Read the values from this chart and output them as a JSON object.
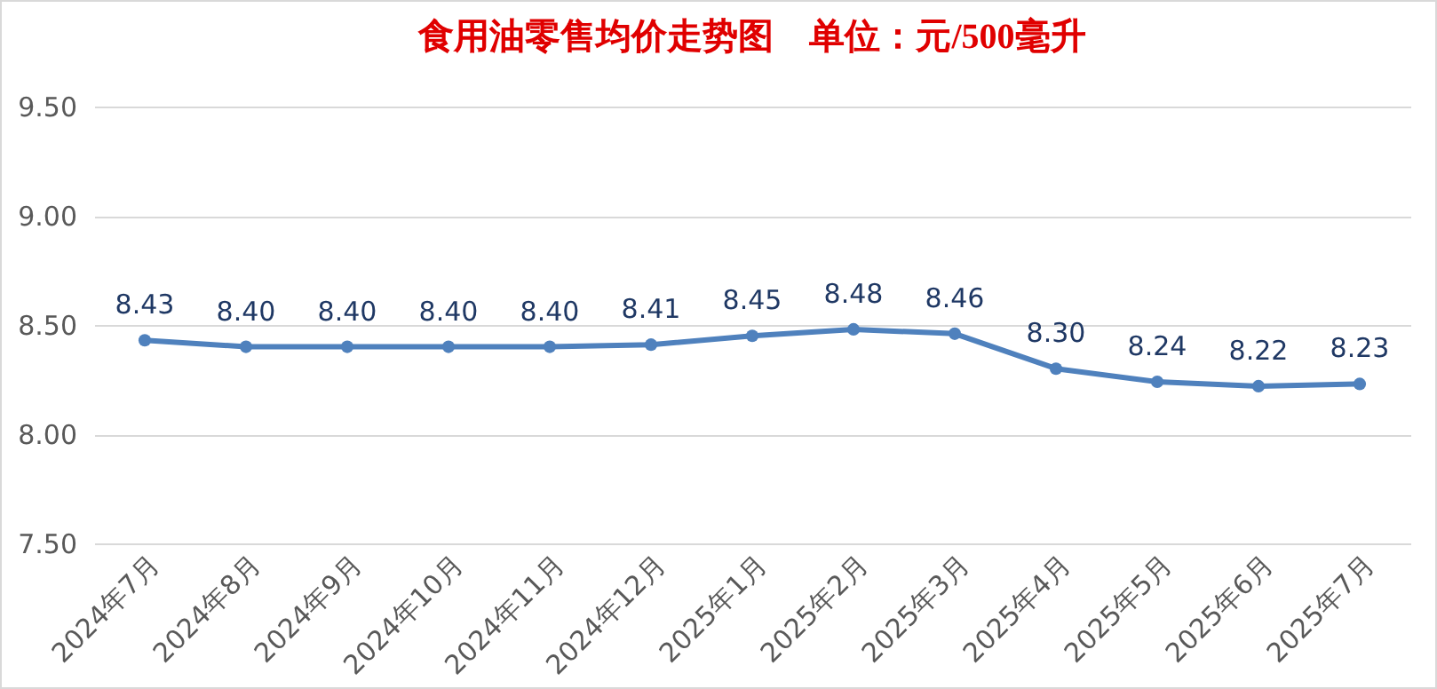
{
  "chart_data": {
    "type": "line",
    "title": "食用油零售均价走势图　单位：元/500毫升",
    "categories": [
      "2024年7月",
      "2024年8月",
      "2024年9月",
      "2024年10月",
      "2024年11月",
      "2024年12月",
      "2025年1月",
      "2025年2月",
      "2025年3月",
      "2025年4月",
      "2025年5月",
      "2025年6月",
      "2025年7月"
    ],
    "series": [
      {
        "color": "#4f81bd",
        "values": [
          8.43,
          8.4,
          8.4,
          8.4,
          8.4,
          8.41,
          8.45,
          8.48,
          8.46,
          8.3,
          8.24,
          8.22,
          8.23
        ],
        "value_labels": [
          "8.43",
          "8.40",
          "8.40",
          "8.40",
          "8.40",
          "8.41",
          "8.45",
          "8.48",
          "8.46",
          "8.30",
          "8.24",
          "8.22",
          "8.23"
        ]
      }
    ],
    "ylim": [
      7.5,
      9.5
    ],
    "yticks": [
      {
        "value": 7.5,
        "label": "7.50"
      },
      {
        "value": 8,
        "label": "8.00"
      },
      {
        "value": 8.5,
        "label": "8.50"
      },
      {
        "value": 9,
        "label": "9.00"
      },
      {
        "value": 9.5,
        "label": "9.50"
      }
    ],
    "grid": "y",
    "marker": "circle",
    "line_style": "solid",
    "legend": false
  }
}
